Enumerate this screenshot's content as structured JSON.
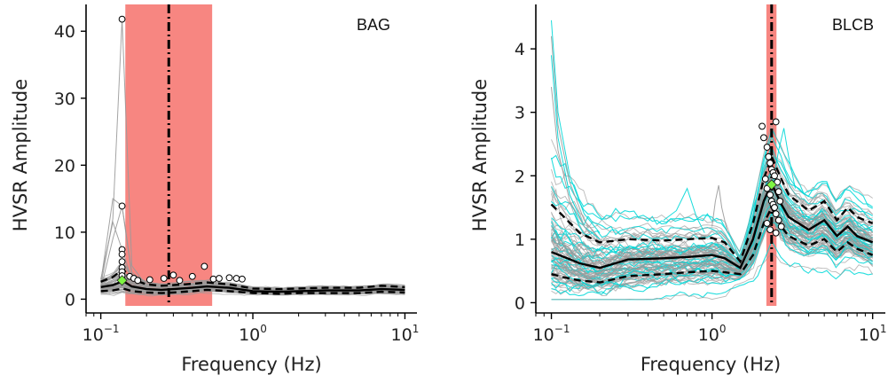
{
  "chart_data": [
    {
      "type": "line",
      "station": "BAG",
      "xscale": "log",
      "xlim": [
        0.08,
        12
      ],
      "ylim": [
        -1,
        44
      ],
      "xticks": [
        {
          "base": "10",
          "exp": "−1"
        },
        {
          "base": "10",
          "exp": "0"
        },
        {
          "base": "10",
          "exp": "1"
        }
      ],
      "xticks_values": [
        0.1,
        1,
        10
      ],
      "yticks": [
        0,
        10,
        20,
        30,
        40
      ],
      "xlabel": "Frequency (Hz)",
      "ylabel": "HVSR Amplitude",
      "band": [
        0.145,
        0.54
      ],
      "vline": 0.28,
      "band_color": "#f77f7a",
      "curve_colors": [
        "#9a9a9a",
        "#00d8d8"
      ],
      "median": {
        "x": [
          0.1,
          0.12,
          0.14,
          0.16,
          0.2,
          0.25,
          0.3,
          0.4,
          0.5,
          0.7,
          1.0,
          1.5,
          2,
          3,
          5,
          7,
          10
        ],
        "y": [
          1.8,
          2.1,
          2.7,
          1.9,
          1.5,
          1.4,
          1.5,
          1.7,
          1.9,
          1.7,
          1.2,
          1.1,
          1.2,
          1.3,
          1.3,
          1.5,
          1.4
        ]
      },
      "upper": {
        "x": [
          0.1,
          0.12,
          0.14,
          0.16,
          0.2,
          0.25,
          0.3,
          0.4,
          0.5,
          0.7,
          1.0,
          1.5,
          2,
          3,
          5,
          7,
          10
        ],
        "y": [
          2.6,
          3.3,
          4.5,
          3.0,
          2.2,
          2.0,
          2.1,
          2.3,
          2.5,
          2.2,
          1.6,
          1.5,
          1.6,
          1.7,
          1.7,
          2.0,
          1.8
        ]
      },
      "lower": {
        "x": [
          0.1,
          0.12,
          0.14,
          0.16,
          0.2,
          0.25,
          0.3,
          0.4,
          0.5,
          0.7,
          1.0,
          1.5,
          2,
          3,
          5,
          7,
          10
        ],
        "y": [
          1.2,
          1.3,
          1.6,
          1.2,
          1.0,
          0.9,
          1.0,
          1.2,
          1.4,
          1.2,
          0.9,
          0.8,
          0.9,
          0.9,
          0.9,
          1.1,
          1.0
        ]
      },
      "peak": {
        "x": 0.138,
        "y": 2.8
      },
      "peak_color": "#7ef542",
      "peak_points": [
        {
          "x": 0.138,
          "y": 41.8
        },
        {
          "x": 0.138,
          "y": 13.9
        },
        {
          "x": 0.138,
          "y": 7.4
        },
        {
          "x": 0.138,
          "y": 6.7
        },
        {
          "x": 0.138,
          "y": 5.6
        },
        {
          "x": 0.138,
          "y": 4.7
        },
        {
          "x": 0.138,
          "y": 4.1
        },
        {
          "x": 0.138,
          "y": 3.5
        },
        {
          "x": 0.155,
          "y": 3.4
        },
        {
          "x": 0.165,
          "y": 3.1
        },
        {
          "x": 0.175,
          "y": 2.8
        },
        {
          "x": 0.21,
          "y": 2.9
        },
        {
          "x": 0.26,
          "y": 3.1
        },
        {
          "x": 0.3,
          "y": 3.6
        },
        {
          "x": 0.33,
          "y": 2.8
        },
        {
          "x": 0.4,
          "y": 3.4
        },
        {
          "x": 0.48,
          "y": 4.9
        },
        {
          "x": 0.55,
          "y": 3.0
        },
        {
          "x": 0.6,
          "y": 3.1
        },
        {
          "x": 0.7,
          "y": 3.2
        },
        {
          "x": 0.78,
          "y": 3.1
        },
        {
          "x": 0.85,
          "y": 3.0
        }
      ],
      "spikes": [
        {
          "x": [
            0.1,
            0.12,
            0.138,
            0.16,
            0.2
          ],
          "y": [
            2.0,
            12.0,
            41.8,
            5.0,
            2.0
          ]
        },
        {
          "x": [
            0.1,
            0.12,
            0.138,
            0.16,
            0.2
          ],
          "y": [
            2.5,
            15.0,
            13.9,
            4.0,
            2.2
          ]
        },
        {
          "x": [
            0.1,
            0.12,
            0.138,
            0.16,
            0.2
          ],
          "y": [
            1.5,
            9.0,
            13.9,
            3.5,
            1.8
          ]
        },
        {
          "x": [
            0.1,
            0.12,
            0.138,
            0.16,
            0.2
          ],
          "y": [
            3.0,
            11.5,
            7.4,
            3.0,
            2.0
          ]
        }
      ]
    },
    {
      "type": "line",
      "station": "BLCB",
      "xscale": "log",
      "xlim": [
        0.08,
        12
      ],
      "ylim": [
        -0.05,
        4.7
      ],
      "xticks": [
        {
          "base": "10",
          "exp": "−1"
        },
        {
          "base": "10",
          "exp": "0"
        },
        {
          "base": "10",
          "exp": "1"
        }
      ],
      "xticks_values": [
        0.1,
        1,
        10
      ],
      "yticks": [
        0,
        1,
        2,
        3,
        4
      ],
      "xlabel": "Frequency (Hz)",
      "ylabel": "HVSR Amplitude",
      "band": [
        2.18,
        2.52
      ],
      "vline": 2.35,
      "band_color": "#f77f7a",
      "curve_colors": [
        "#9a9a9a",
        "#00d8d8"
      ],
      "median": {
        "x": [
          0.1,
          0.12,
          0.15,
          0.2,
          0.3,
          0.5,
          0.7,
          1.0,
          1.2,
          1.5,
          1.8,
          2.1,
          2.35,
          2.7,
          3,
          4,
          5,
          6,
          7,
          8,
          10
        ],
        "y": [
          0.8,
          0.72,
          0.62,
          0.55,
          0.68,
          0.7,
          0.72,
          0.75,
          0.7,
          0.55,
          1.0,
          1.6,
          1.88,
          1.55,
          1.35,
          1.15,
          1.3,
          1.05,
          1.2,
          1.05,
          0.95
        ]
      },
      "upper": {
        "x": [
          0.1,
          0.12,
          0.15,
          0.2,
          0.3,
          0.5,
          0.7,
          1.0,
          1.2,
          1.5,
          1.8,
          2.1,
          2.35,
          2.7,
          3,
          4,
          5,
          6,
          7,
          8,
          10
        ],
        "y": [
          1.55,
          1.35,
          1.1,
          0.95,
          1.0,
          0.98,
          1.0,
          1.02,
          0.95,
          0.65,
          1.25,
          1.95,
          2.3,
          1.95,
          1.7,
          1.45,
          1.6,
          1.3,
          1.5,
          1.35,
          1.25
        ]
      },
      "lower": {
        "x": [
          0.1,
          0.12,
          0.15,
          0.2,
          0.3,
          0.5,
          0.7,
          1.0,
          1.2,
          1.5,
          1.8,
          2.1,
          2.35,
          2.7,
          3,
          4,
          5,
          6,
          7,
          8,
          10
        ],
        "y": [
          0.45,
          0.4,
          0.35,
          0.32,
          0.42,
          0.45,
          0.48,
          0.5,
          0.48,
          0.45,
          0.75,
          1.25,
          1.5,
          1.2,
          1.05,
          0.9,
          1.0,
          0.8,
          0.95,
          0.85,
          0.75
        ]
      },
      "peak": {
        "x": 2.35,
        "y": 1.86
      },
      "peak_color": "#7ef542",
      "peak_points": [
        {
          "x": 2.05,
          "y": 2.78
        },
        {
          "x": 2.1,
          "y": 2.6
        },
        {
          "x": 2.2,
          "y": 2.45
        },
        {
          "x": 2.25,
          "y": 2.3
        },
        {
          "x": 2.3,
          "y": 2.2
        },
        {
          "x": 2.35,
          "y": 2.1
        },
        {
          "x": 2.4,
          "y": 2.05
        },
        {
          "x": 2.45,
          "y": 2.0
        },
        {
          "x": 2.5,
          "y": 2.85
        },
        {
          "x": 2.55,
          "y": 1.9
        },
        {
          "x": 2.6,
          "y": 1.75
        },
        {
          "x": 2.65,
          "y": 1.6
        },
        {
          "x": 2.15,
          "y": 1.95
        },
        {
          "x": 2.2,
          "y": 1.8
        },
        {
          "x": 2.3,
          "y": 1.7
        },
        {
          "x": 2.35,
          "y": 1.6
        },
        {
          "x": 2.4,
          "y": 1.55
        },
        {
          "x": 2.45,
          "y": 1.5
        },
        {
          "x": 2.5,
          "y": 1.4
        },
        {
          "x": 2.6,
          "y": 1.3
        },
        {
          "x": 2.7,
          "y": 1.2
        },
        {
          "x": 2.2,
          "y": 1.25
        },
        {
          "x": 2.3,
          "y": 1.15
        },
        {
          "x": 2.5,
          "y": 1.1
        }
      ],
      "spikes": [
        {
          "x": [
            0.1,
            0.11,
            0.13,
            0.16,
            0.2
          ],
          "y": [
            4.45,
            3.0,
            2.0,
            1.4,
            1.1
          ]
        },
        {
          "x": [
            0.1,
            0.11,
            0.13,
            0.16,
            0.2
          ],
          "y": [
            4.2,
            2.8,
            1.9,
            1.3,
            1.0
          ]
        },
        {
          "x": [
            0.1,
            0.11,
            0.13,
            0.16,
            0.2
          ],
          "y": [
            3.9,
            2.6,
            1.7,
            1.2,
            1.0
          ]
        },
        {
          "x": [
            0.1,
            0.11,
            0.13,
            0.16,
            0.2
          ],
          "y": [
            3.4,
            2.4,
            1.6,
            1.2,
            0.9
          ]
        },
        {
          "x": [
            0.5,
            0.6,
            0.7,
            0.8,
            0.9
          ],
          "y": [
            1.3,
            1.45,
            1.8,
            1.35,
            1.1
          ]
        },
        {
          "x": [
            1.0,
            1.05,
            1.1,
            1.15,
            1.25
          ],
          "y": [
            1.2,
            1.6,
            1.85,
            1.5,
            1.1
          ]
        },
        {
          "x": [
            2.4,
            2.6,
            2.8,
            3.0,
            3.3
          ],
          "y": [
            1.9,
            2.4,
            2.75,
            2.3,
            1.8
          ]
        }
      ]
    }
  ]
}
